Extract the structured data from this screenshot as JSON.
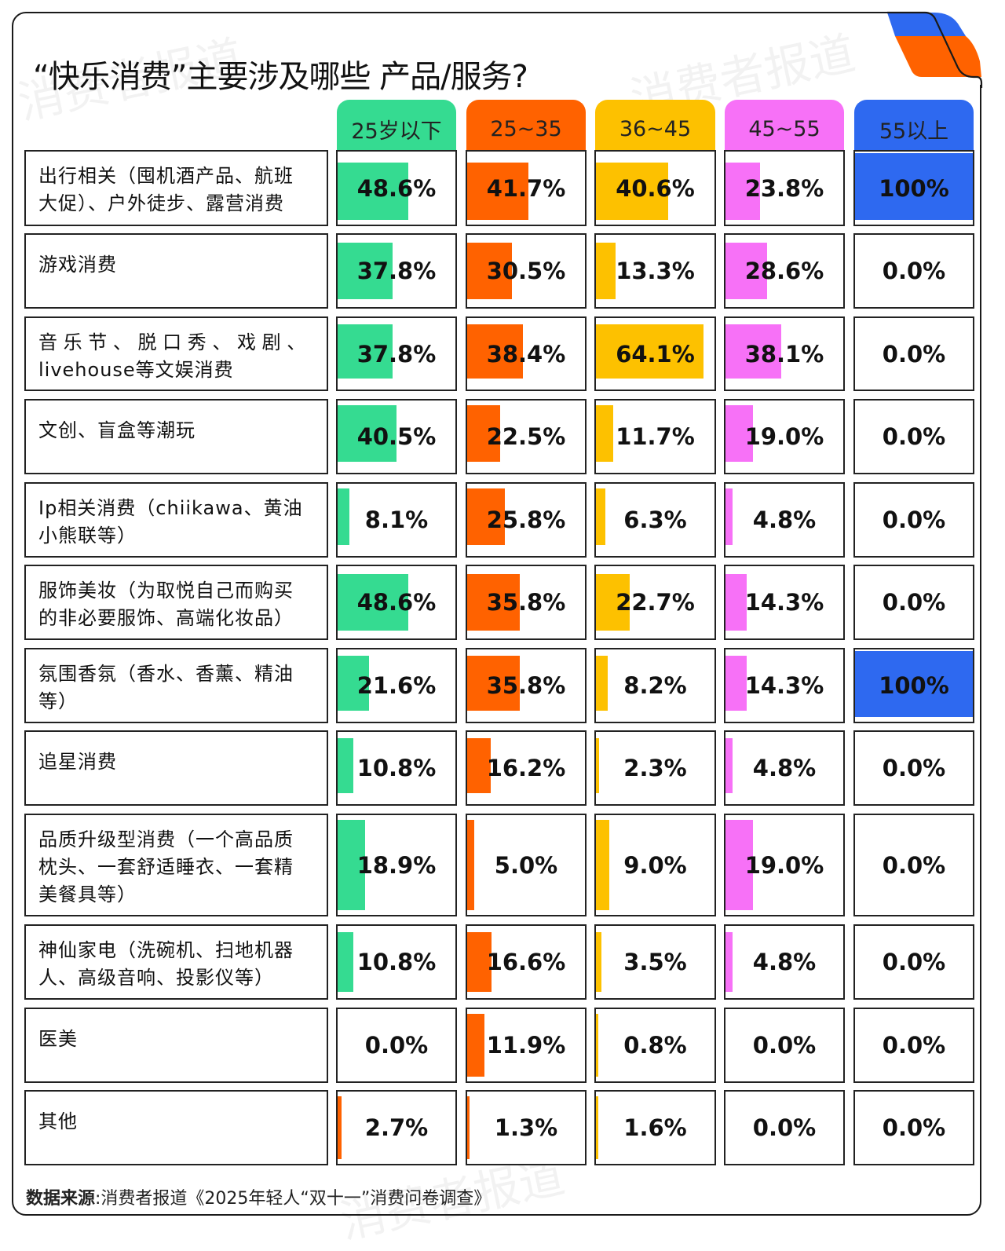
{
  "title": "“快乐消费”主要涉及哪些 产品/服务?",
  "watermark": "消费者报道",
  "colors": {
    "25岁以下": "#35DB91",
    "25~35": "#FF6200",
    "36~45": "#FDC100",
    "45~55": "#F771F7",
    "55以上": "#2E69F0",
    "border": "#222222"
  },
  "columns": [
    {
      "label": "25岁以下",
      "color": "#35DB91"
    },
    {
      "label": "25~35",
      "color": "#FF6200"
    },
    {
      "label": "36~45",
      "color": "#FDC100"
    },
    {
      "label": "45~55",
      "color": "#F771F7"
    },
    {
      "label": "55以上",
      "color": "#2E69F0"
    }
  ],
  "rows": [
    {
      "label": "出行相关（囤机酒产品、航班大促）、户外徒步、露营消费",
      "values": [
        "48.6%",
        "41.7%",
        "40.6%",
        "23.8%",
        "100%"
      ]
    },
    {
      "label": "游戏消费",
      "values": [
        "37.8%",
        "30.5%",
        "13.3%",
        "28.6%",
        "0.0%"
      ]
    },
    {
      "label": "音乐节、脱口秀、戏剧、livehouse等文娱消费",
      "values": [
        "37.8%",
        "38.4%",
        "64.1%",
        "38.1%",
        "0.0%"
      ]
    },
    {
      "label": "文创、盲盒等潮玩",
      "values": [
        "40.5%",
        "22.5%",
        "11.7%",
        "19.0%",
        "0.0%"
      ]
    },
    {
      "label": "Ip相关消费（chiikawa、黄油小熊联等）",
      "values": [
        "8.1%",
        "25.8%",
        "6.3%",
        "4.8%",
        "0.0%"
      ]
    },
    {
      "label": "服饰美妆（为取悦自己而购买的非必要服饰、高端化妆品）",
      "values": [
        "48.6%",
        "35.8%",
        "22.7%",
        "14.3%",
        "0.0%"
      ]
    },
    {
      "label": "氛围香氛（香水、香薰、精油等）",
      "values": [
        "21.6%",
        "35.8%",
        "8.2%",
        "14.3%",
        "100%"
      ]
    },
    {
      "label": "追星消费",
      "values": [
        "10.8%",
        "16.2%",
        "2.3%",
        "4.8%",
        "0.0%"
      ]
    },
    {
      "label": "品质升级型消费（一个高品质枕头、一套舒适睡衣、一套精美餐具等）",
      "values": [
        "18.9%",
        "5.0%",
        "9.0%",
        "19.0%",
        "0.0%"
      ]
    },
    {
      "label": "神仙家电（洗碗机、扫地机器人、高级音响、投影仪等）",
      "values": [
        "10.8%",
        "16.6%",
        "3.5%",
        "4.8%",
        "0.0%"
      ]
    },
    {
      "label": "医美",
      "values": [
        "0.0%",
        "11.9%",
        "0.8%",
        "0.0%",
        "0.0%"
      ]
    },
    {
      "label": "其他",
      "values": [
        "2.7%",
        "1.3%",
        "1.6%",
        "0.0%",
        "0.0%"
      ]
    }
  ],
  "label_lines": [
    [
      "出行相关（囤机酒产品、航班",
      "大促）、户外徒步、露营消费"
    ],
    [
      "游戏消费"
    ],
    [
      "音 乐 节 、 脱 口 秀 、 戏 剧 、",
      "livehouse等文娱消费"
    ],
    [
      "文创、盲盒等潮玩"
    ],
    [
      "Ip相关消费（chiikawa、黄油",
      "小熊联等）"
    ],
    [
      "服饰美妆（为取悦自己而购买",
      "的非必要服饰、高端化妆品）"
    ],
    [
      "氛围香氛（香水、香薰、精油",
      "等）"
    ],
    [
      "追星消费"
    ],
    [
      "品质升级型消费（一个高品质",
      "枕头、一套舒适睡衣、一套精",
      "美餐具等）"
    ],
    [
      "神仙家电（洗碗机、扫地机器",
      "人、高级音响、投影仪等）"
    ],
    [
      "医美"
    ],
    [
      "其他"
    ]
  ],
  "source": {
    "prefix": "数据来源",
    "text": ":消费者报道《2025年轻人“双十一”消费问卷调查》"
  },
  "chart_data": {
    "type": "table",
    "title": "“快乐消费”主要涉及哪些 产品/服务?",
    "categories": [
      "出行相关（囤机酒产品、航班大促）、户外徒步、露营消费",
      "游戏消费",
      "音乐节、脱口秀、戏剧、livehouse等文娱消费",
      "文创、盲盒等潮玩",
      "Ip相关消费（chiikawa、黄油小熊联等）",
      "服饰美妆（为取悦自己而购买的非必要服饰、高端化妆品）",
      "氛围香氛（香水、香薰、精油等）",
      "追星消费",
      "品质升级型消费（一个高品质枕头、一套舒适睡衣、一套精美餐具等）",
      "神仙家电（洗碗机、扫地机器人、高级音响、投影仪等）",
      "医美",
      "其他"
    ],
    "series": [
      {
        "name": "25岁以下",
        "color": "#35DB91",
        "values": [
          48.6,
          37.8,
          37.8,
          40.5,
          8.1,
          48.6,
          21.6,
          10.8,
          18.9,
          10.8,
          0.0,
          2.7
        ]
      },
      {
        "name": "25~35",
        "color": "#FF6200",
        "values": [
          41.7,
          30.5,
          38.4,
          22.5,
          25.8,
          35.8,
          35.8,
          16.2,
          5.0,
          16.6,
          11.9,
          1.3
        ]
      },
      {
        "name": "36~45",
        "color": "#FDC100",
        "values": [
          40.6,
          13.3,
          64.1,
          11.7,
          6.3,
          22.7,
          8.2,
          2.3,
          9.0,
          3.5,
          0.8,
          1.6
        ]
      },
      {
        "name": "45~55",
        "color": "#F771F7",
        "values": [
          23.8,
          28.6,
          38.1,
          19.0,
          4.8,
          14.3,
          14.3,
          4.8,
          19.0,
          4.8,
          0.0,
          0.0
        ]
      },
      {
        "name": "55以上",
        "color": "#2E69F0",
        "values": [
          100,
          0.0,
          0.0,
          0.0,
          0.0,
          0.0,
          100,
          0.0,
          0.0,
          0.0,
          0.0,
          0.0
        ]
      }
    ],
    "unit": "%",
    "source": "消费者报道《2025年轻人“双十一”消费问卷调查》"
  }
}
